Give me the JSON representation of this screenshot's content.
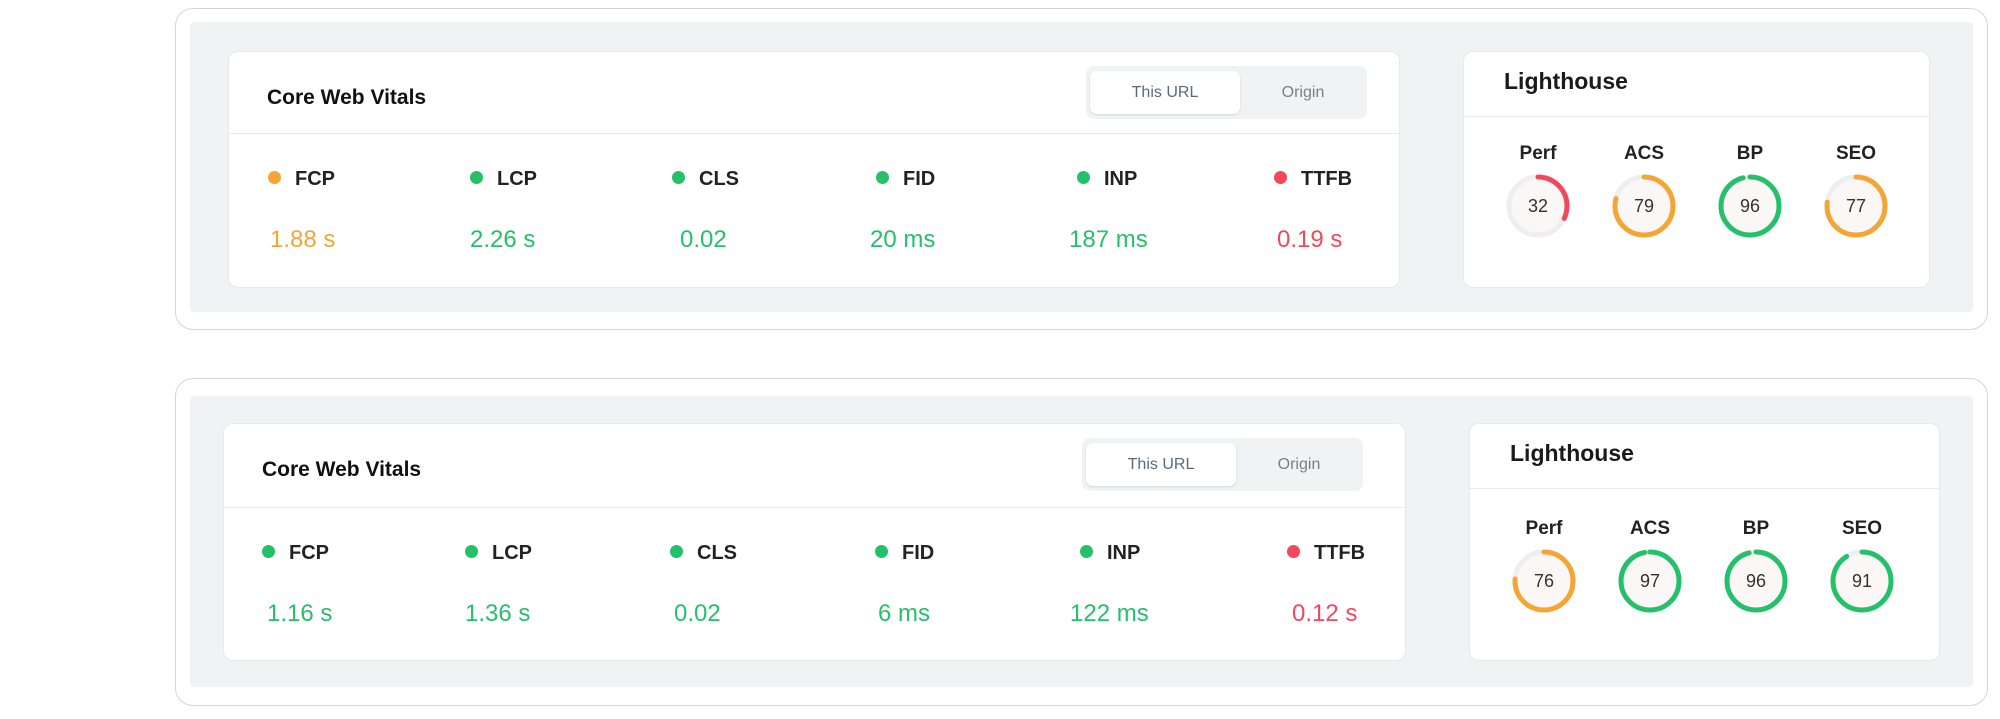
{
  "colors": {
    "good": "#25c06a",
    "needs_improvement": "#f5a534",
    "poor": "#f2485c",
    "gauge_track": "#eeeeee"
  },
  "reports": [
    {
      "cwv": {
        "title": "Core Web Vitals",
        "toggle": {
          "active": "This URL",
          "inactive": "Origin"
        },
        "metrics": [
          {
            "label": "FCP",
            "value": "1.88 s",
            "status": "needs_improvement"
          },
          {
            "label": "LCP",
            "value": "2.26 s",
            "status": "good"
          },
          {
            "label": "CLS",
            "value": "0.02",
            "status": "good"
          },
          {
            "label": "FID",
            "value": "20 ms",
            "status": "good"
          },
          {
            "label": "INP",
            "value": "187 ms",
            "status": "good"
          },
          {
            "label": "TTFB",
            "value": "0.19 s",
            "status": "poor"
          }
        ]
      },
      "lighthouse": {
        "title": "Lighthouse",
        "scores": [
          {
            "label": "Perf",
            "value": 32,
            "status": "poor"
          },
          {
            "label": "ACS",
            "value": 79,
            "status": "needs_improvement"
          },
          {
            "label": "BP",
            "value": 96,
            "status": "good"
          },
          {
            "label": "SEO",
            "value": 77,
            "status": "needs_improvement"
          }
        ]
      }
    },
    {
      "cwv": {
        "title": "Core Web Vitals",
        "toggle": {
          "active": "This URL",
          "inactive": "Origin"
        },
        "metrics": [
          {
            "label": "FCP",
            "value": "1.16 s",
            "status": "good"
          },
          {
            "label": "LCP",
            "value": "1.36 s",
            "status": "good"
          },
          {
            "label": "CLS",
            "value": "0.02",
            "status": "good"
          },
          {
            "label": "FID",
            "value": "6 ms",
            "status": "good"
          },
          {
            "label": "INP",
            "value": "122 ms",
            "status": "good"
          },
          {
            "label": "TTFB",
            "value": "0.12 s",
            "status": "poor"
          }
        ]
      },
      "lighthouse": {
        "title": "Lighthouse",
        "scores": [
          {
            "label": "Perf",
            "value": 76,
            "status": "needs_improvement"
          },
          {
            "label": "ACS",
            "value": 97,
            "status": "good"
          },
          {
            "label": "BP",
            "value": 96,
            "status": "good"
          },
          {
            "label": "SEO",
            "value": 91,
            "status": "good"
          }
        ]
      }
    }
  ]
}
